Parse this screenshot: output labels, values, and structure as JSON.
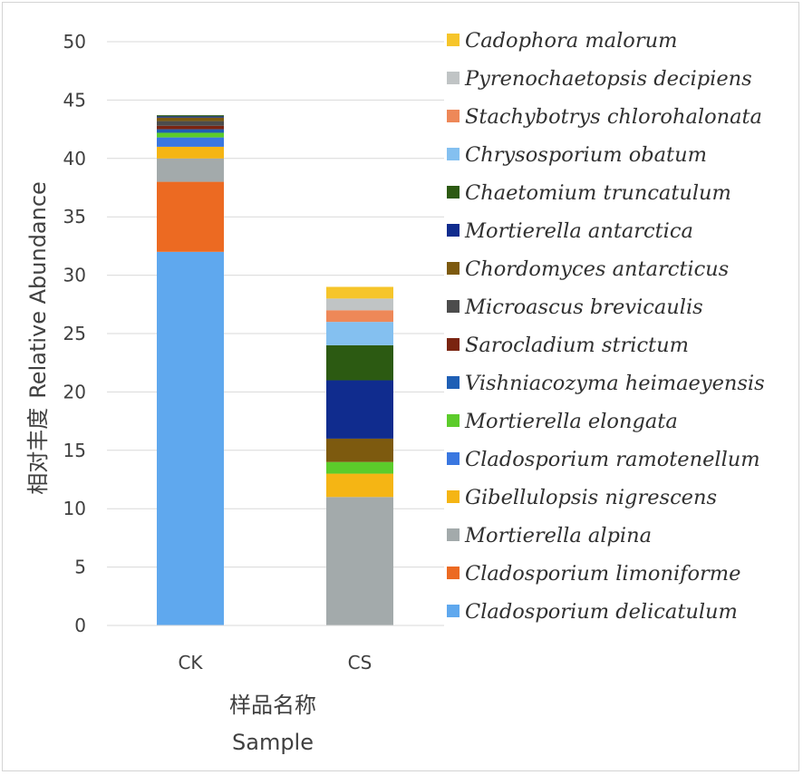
{
  "chart_data": {
    "type": "bar",
    "stacked": true,
    "categories": [
      "CK",
      "CS"
    ],
    "xlabel": "样品名称",
    "xlabel_en": "Sample",
    "ylabel": "相对丰度",
    "ylabel_en": "Relative Abundance",
    "ylim": [
      0,
      50
    ],
    "yticks": [
      0,
      5,
      10,
      15,
      20,
      25,
      30,
      35,
      40,
      45,
      50
    ],
    "grid": true,
    "legend_position": "right",
    "series": [
      {
        "name": "Cladosporium delicatulum",
        "color": "#5fa8ee",
        "values": [
          32,
          0
        ]
      },
      {
        "name": "Cladosporium limoniforme",
        "color": "#ec6a22",
        "values": [
          6,
          0
        ]
      },
      {
        "name": "Mortierella alpina",
        "color": "#a3aaab",
        "values": [
          2,
          11
        ]
      },
      {
        "name": "Gibellulopsis nigrescens",
        "color": "#f5b514",
        "values": [
          1,
          2
        ]
      },
      {
        "name": "Cladosporium ramotenellum",
        "color": "#3a77e0",
        "values": [
          0.8,
          0
        ]
      },
      {
        "name": "Mortierella elongata",
        "color": "#5ccc2b",
        "values": [
          0.4,
          1
        ]
      },
      {
        "name": "Vishniacozyma heimaeyensis",
        "color": "#1f5fb5",
        "values": [
          0.3,
          0
        ]
      },
      {
        "name": "Sarocladium strictum",
        "color": "#7a2410",
        "values": [
          0.3,
          0
        ]
      },
      {
        "name": "Microascus brevicaulis",
        "color": "#4c4c4c",
        "values": [
          0.4,
          0
        ]
      },
      {
        "name": "Chordomyces antarcticus",
        "color": "#7d5a0f",
        "values": [
          0.3,
          2
        ]
      },
      {
        "name": "Mortierella antarctica",
        "color": "#102c8e",
        "values": [
          0.1,
          5
        ]
      },
      {
        "name": "Chaetomium truncatulum",
        "color": "#2c5a12",
        "values": [
          0.1,
          3
        ]
      },
      {
        "name": "Chrysosporium obatum",
        "color": "#84c0f0",
        "values": [
          0,
          2
        ]
      },
      {
        "name": "Stachybotrys chlorohalonata",
        "color": "#ee8858",
        "values": [
          0,
          1
        ]
      },
      {
        "name": "Pyrenochaetopsis decipiens",
        "color": "#c0c4c5",
        "values": [
          0,
          1
        ]
      },
      {
        "name": "Cadophora malorum",
        "color": "#f6c52a",
        "values": [
          0,
          1
        ]
      }
    ]
  }
}
